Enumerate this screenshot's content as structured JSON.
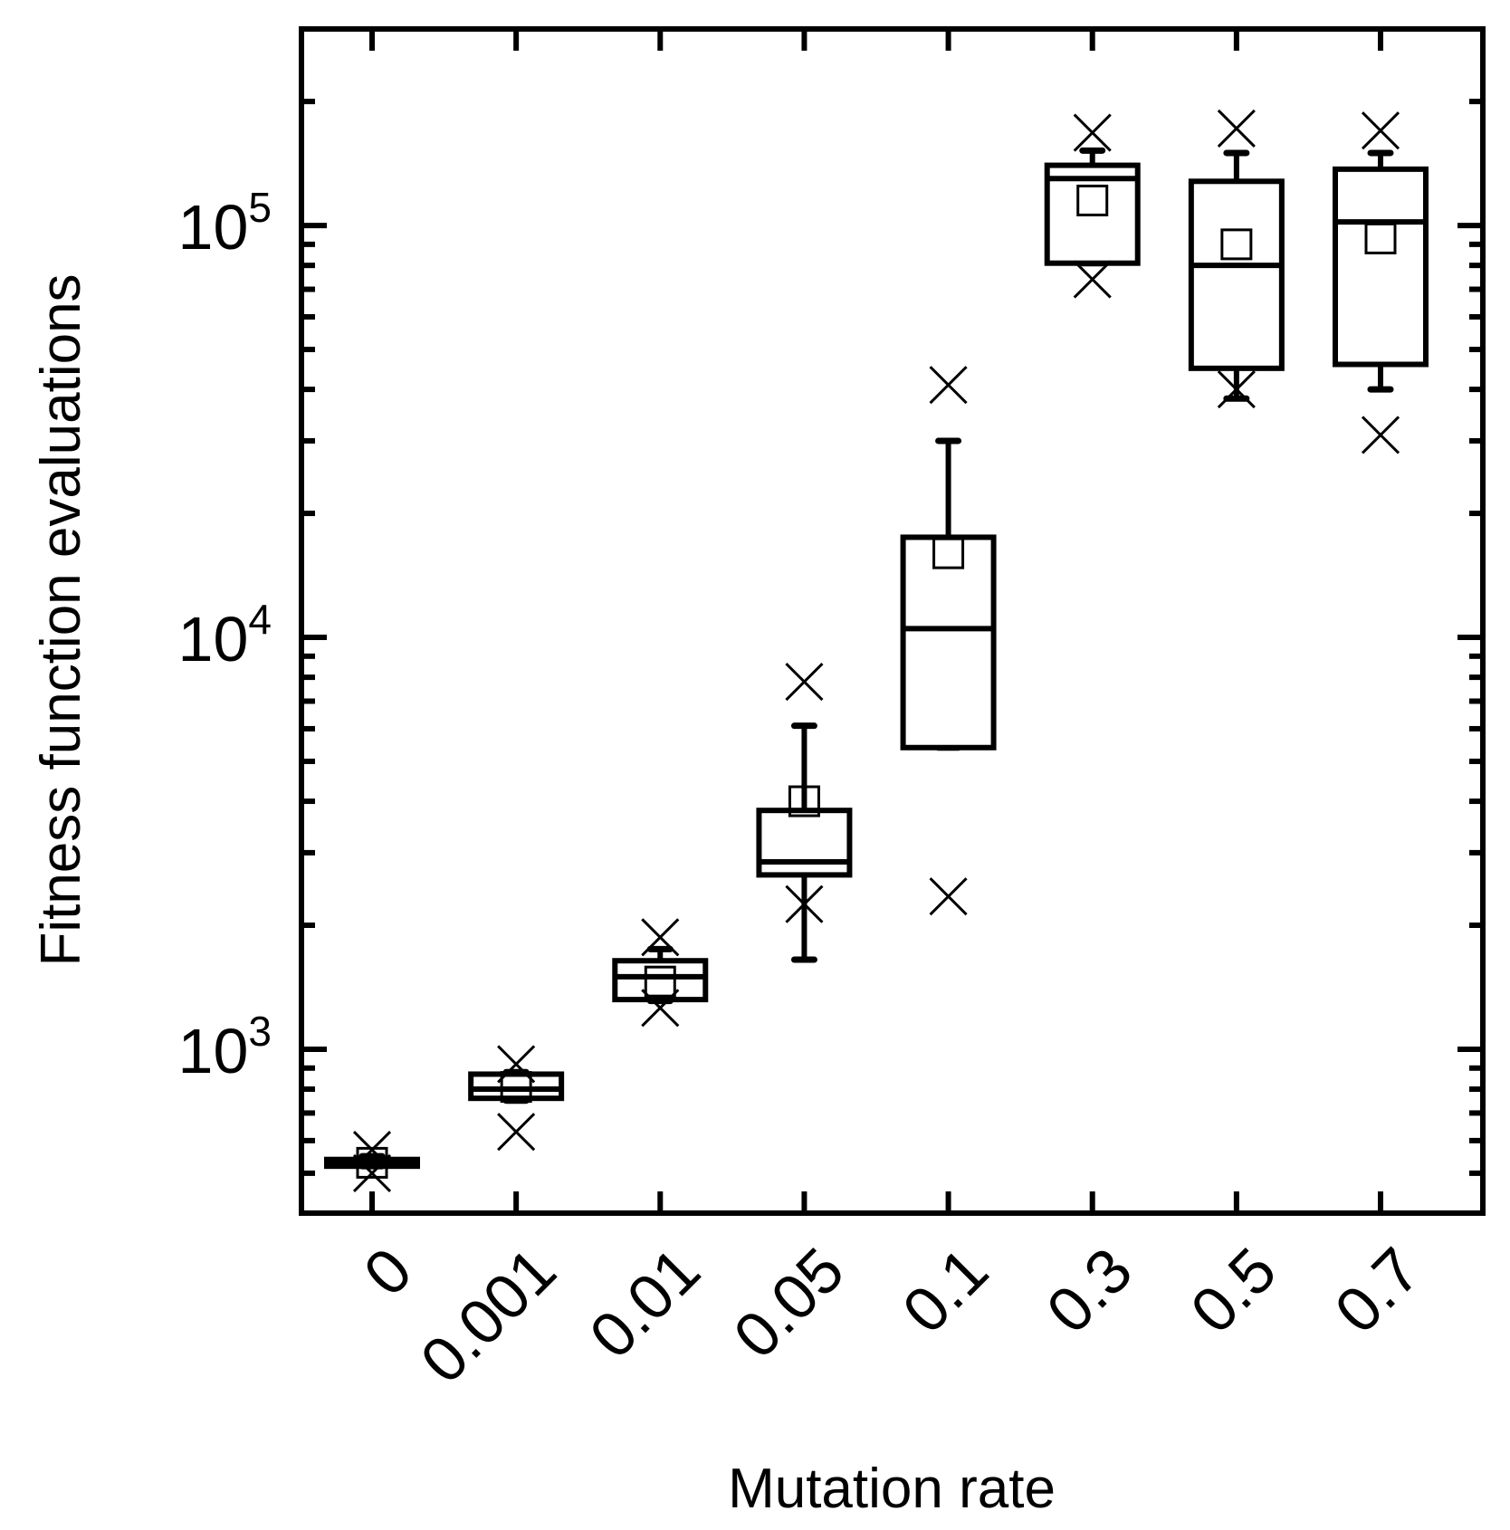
{
  "chart_data": {
    "type": "box",
    "title": "",
    "xlabel": "Mutation rate",
    "ylabel": "Fitness function evaluations",
    "yscale": "log",
    "ylim": [
      400,
      300000
    ],
    "y_ticks": [
      {
        "value": 1000,
        "base": "10",
        "exp": "3"
      },
      {
        "value": 10000,
        "base": "10",
        "exp": "4"
      },
      {
        "value": 100000,
        "base": "10",
        "exp": "5"
      }
    ],
    "categories": [
      "0",
      "0.001",
      "0.01",
      "0.05",
      "0.1",
      "0.3",
      "0.5",
      "0.7"
    ],
    "boxes": [
      {
        "category": "0",
        "whisker_low": 520,
        "q1": 520,
        "median": 530,
        "q3": 540,
        "whisker_high": 550,
        "mean": 530,
        "min": 500,
        "max": 570
      },
      {
        "category": "0.001",
        "whisker_low": 750,
        "q1": 760,
        "median": 800,
        "q3": 870,
        "whisker_high": 880,
        "mean": 810,
        "min": 630,
        "max": 920
      },
      {
        "category": "0.01",
        "whisker_low": 1310,
        "q1": 1320,
        "median": 1500,
        "q3": 1640,
        "whisker_high": 1750,
        "mean": 1460,
        "min": 1260,
        "max": 1870
      },
      {
        "category": "0.05",
        "whisker_low": 1650,
        "q1": 2650,
        "median": 2850,
        "q3": 3800,
        "whisker_high": 6100,
        "mean": 4000,
        "min": 2250,
        "max": 7800
      },
      {
        "category": "0.1",
        "whisker_low": 5400,
        "q1": 5400,
        "median": 10500,
        "q3": 17500,
        "whisker_high": 30000,
        "mean": 16000,
        "min": 2350,
        "max": 41000
      },
      {
        "category": "0.3",
        "whisker_low": 81000,
        "q1": 81000,
        "median": 130000,
        "q3": 140000,
        "whisker_high": 152000,
        "mean": 115000,
        "min": 74000,
        "max": 168000
      },
      {
        "category": "0.5",
        "whisker_low": 38000,
        "q1": 45000,
        "median": 80000,
        "q3": 128000,
        "whisker_high": 150000,
        "mean": 90000,
        "min": 40000,
        "max": 172000
      },
      {
        "category": "0.7",
        "whisker_low": 40000,
        "q1": 46000,
        "median": 102000,
        "q3": 137000,
        "whisker_high": 150000,
        "mean": 93000,
        "min": 31000,
        "max": 170000
      }
    ],
    "markers": {
      "mean": "open square",
      "min_max": "cross"
    }
  }
}
